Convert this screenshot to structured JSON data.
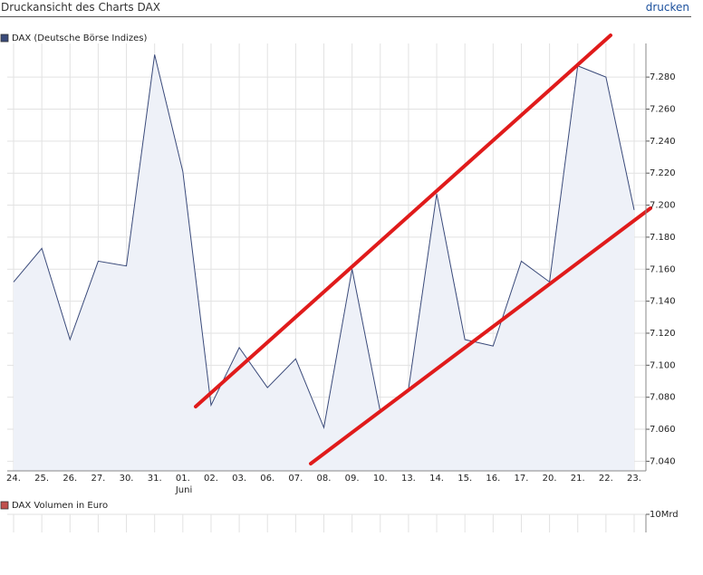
{
  "page": {
    "title": "Druckansicht des Charts DAX",
    "action": "drucken"
  },
  "chart_data": [
    {
      "type": "line",
      "categories": [
        "24.",
        "25.",
        "26.",
        "27.",
        "30.",
        "31.",
        "01.",
        "02.",
        "03.",
        "06.",
        "07.",
        "08.",
        "09.",
        "10.",
        "13.",
        "14.",
        "15.",
        "16.",
        "17.",
        "20.",
        "21.",
        "22.",
        "23."
      ],
      "month_label": "Juni",
      "series": [
        {
          "name": "DAX (Deutsche Börse Indizes)",
          "color": "#3a4a7a",
          "values": [
            7152,
            7173,
            7116,
            7165,
            7162,
            7294,
            7221,
            7075,
            7111,
            7086,
            7104,
            7061,
            7160,
            7071,
            7085,
            7207,
            7116,
            7112,
            7165,
            7152,
            7287,
            7280,
            7197
          ]
        }
      ],
      "ylim": [
        7034,
        7301
      ],
      "yticks": [
        {
          "value": 7040,
          "label": "7.040"
        },
        {
          "value": 7060,
          "label": "7.060"
        },
        {
          "value": 7080,
          "label": "7.080"
        },
        {
          "value": 7100,
          "label": "7.100"
        },
        {
          "value": 7120,
          "label": "7.120"
        },
        {
          "value": 7140,
          "label": "7.140"
        },
        {
          "value": 7160,
          "label": "7.160"
        },
        {
          "value": 7180,
          "label": "7.180"
        },
        {
          "value": 7200,
          "label": "7.200"
        },
        {
          "value": 7220,
          "label": "7.220"
        },
        {
          "value": 7240,
          "label": "7.240"
        },
        {
          "value": 7260,
          "label": "7.260"
        },
        {
          "value": 7280,
          "label": "7.280"
        }
      ],
      "grid": true
    },
    {
      "type": "bar",
      "series": [
        {
          "name": "DAX Volumen in Euro",
          "color": "#c0504d",
          "values": []
        }
      ],
      "ylim": [
        0,
        10000000000
      ],
      "yticks": [
        {
          "value": 10000000000,
          "label": "10Mrd"
        }
      ],
      "grid": true
    }
  ]
}
